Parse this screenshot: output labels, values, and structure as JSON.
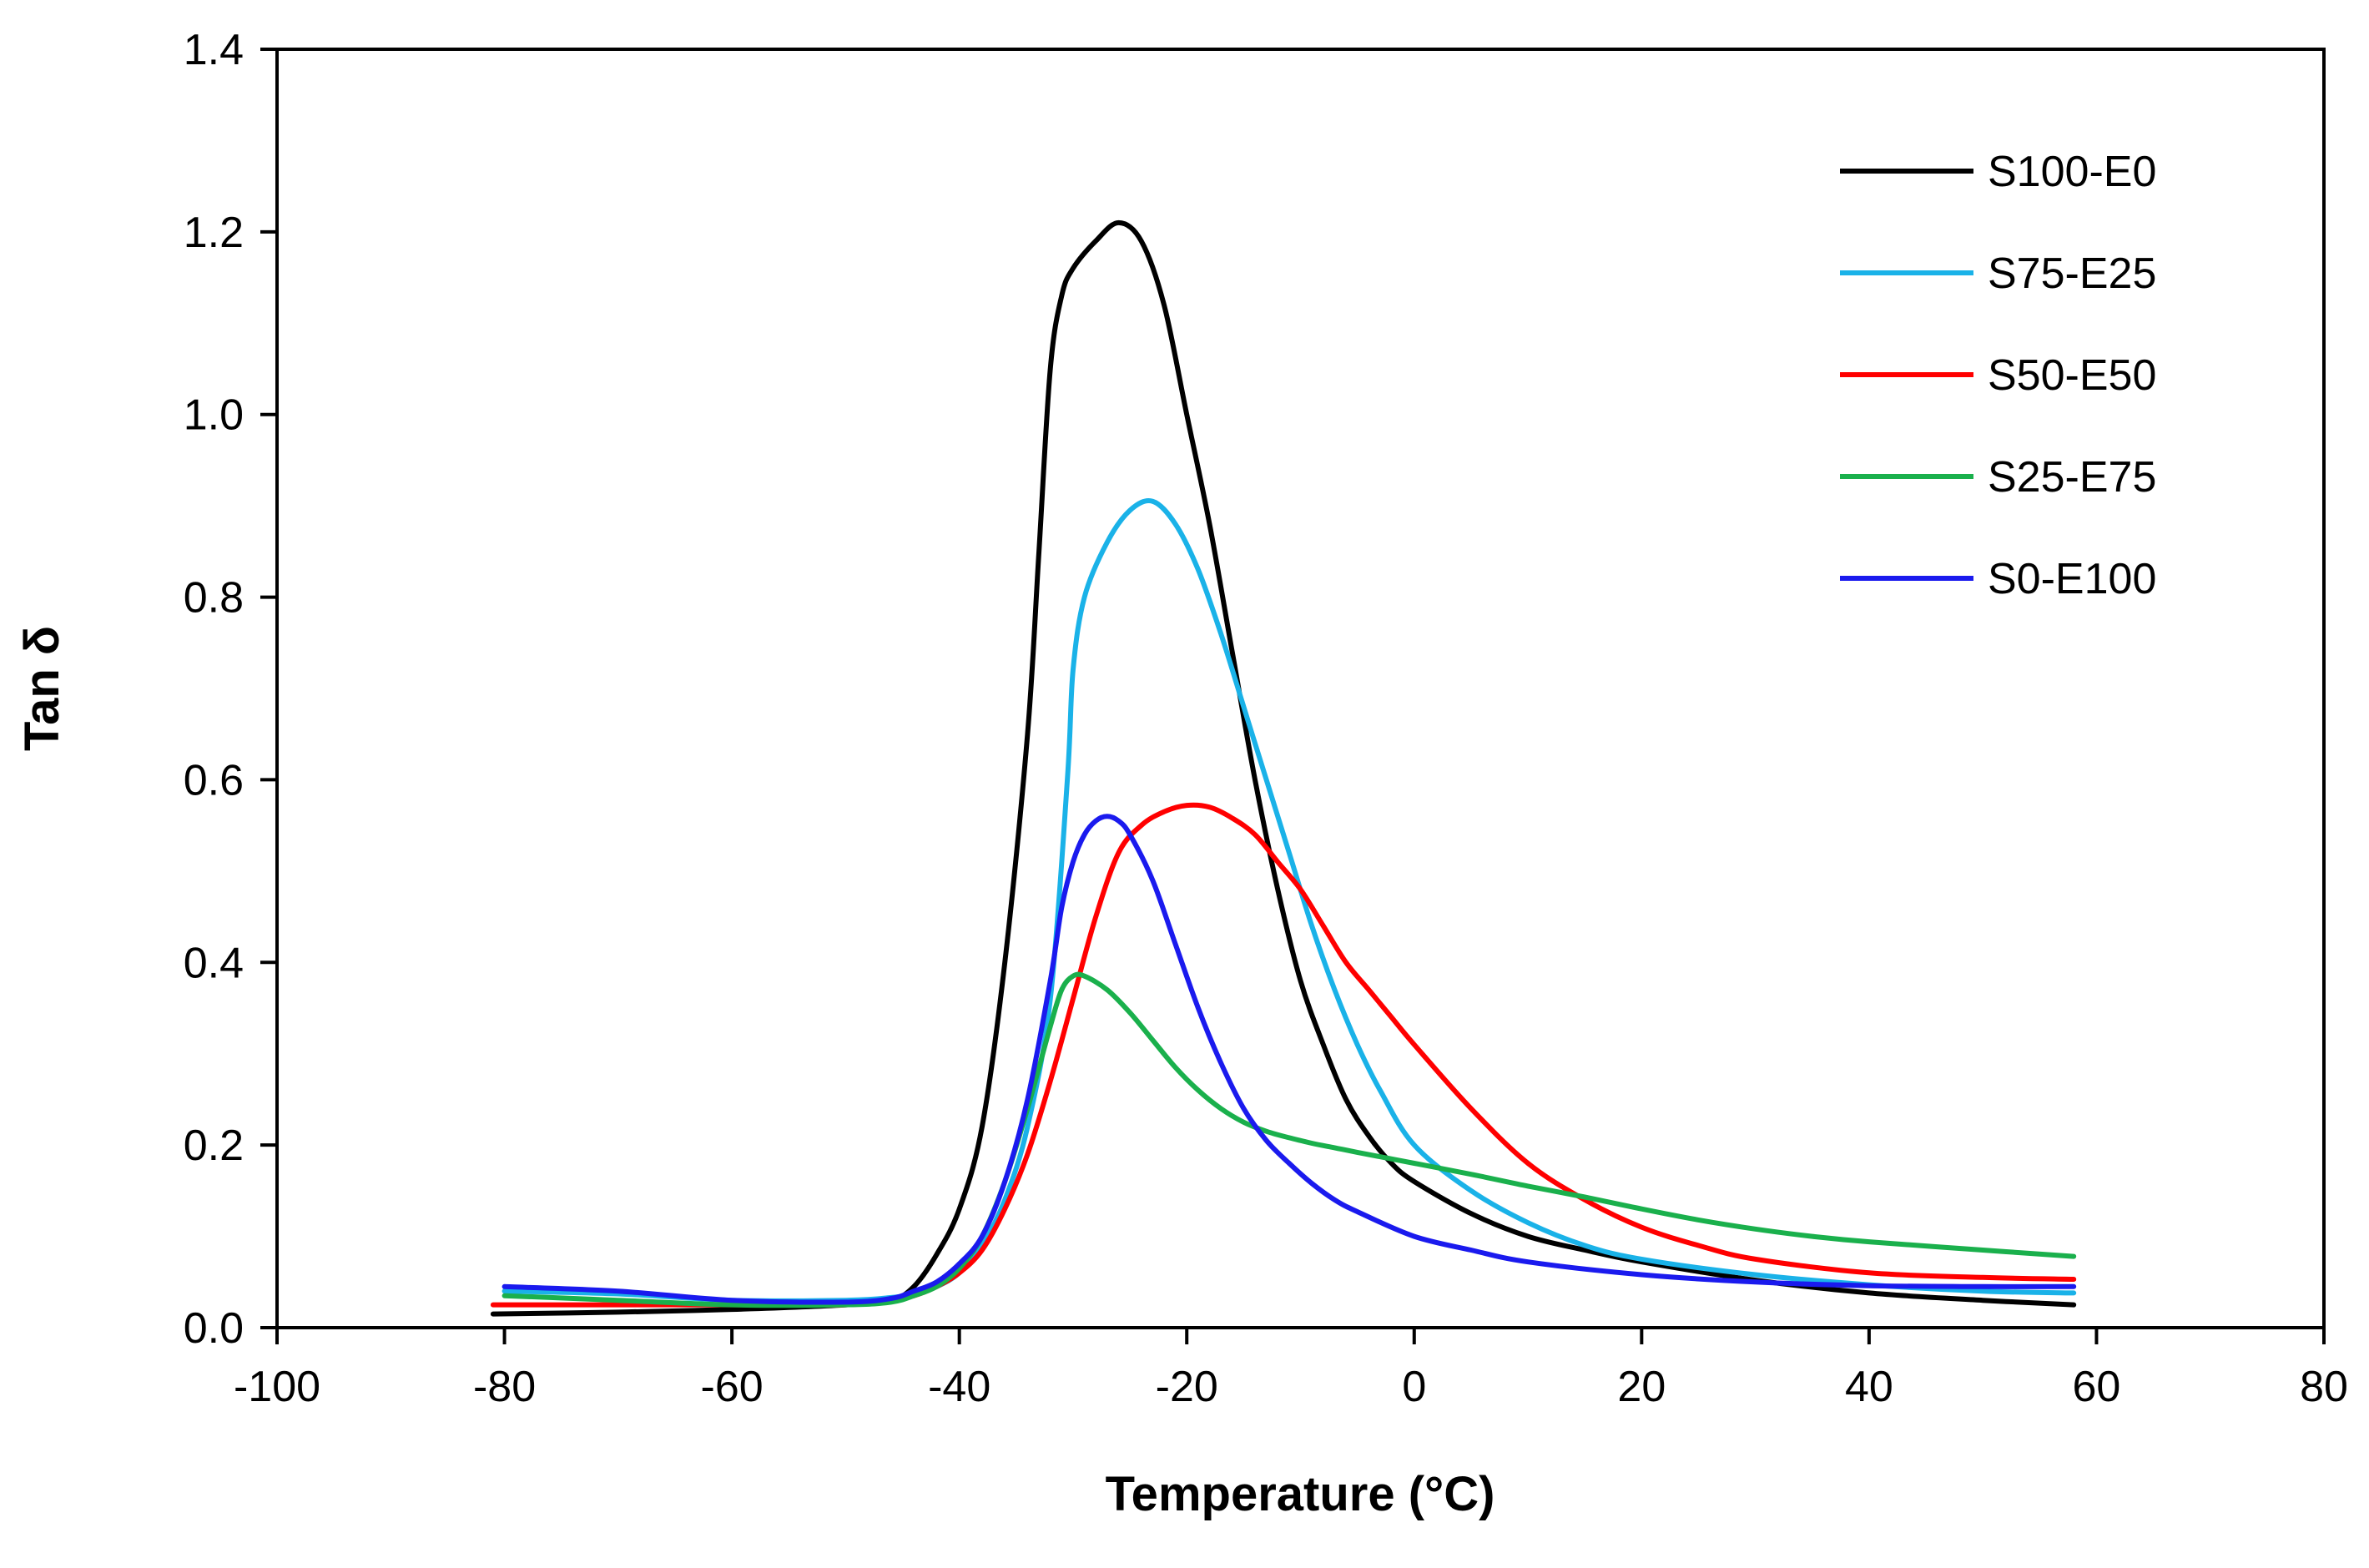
{
  "chart_data": {
    "type": "line",
    "title": "",
    "xlabel": "Temperature (°C)",
    "ylabel": "Tan δ",
    "xlim": [
      -100,
      80
    ],
    "ylim": [
      0,
      1.4
    ],
    "xticks": [
      -100,
      -80,
      -60,
      -40,
      -20,
      0,
      20,
      40,
      60,
      80
    ],
    "xtick_labels": [
      "-100",
      "-80",
      "-60",
      "-40",
      "-20",
      "0",
      "20",
      "40",
      "60",
      "80"
    ],
    "yticks": [
      0,
      0.2,
      0.4,
      0.6,
      0.8,
      1.0,
      1.2,
      1.4
    ],
    "ytick_labels": [
      "0.0",
      "0.2",
      "0.4",
      "0.6",
      "0.8",
      "1.0",
      "1.2",
      "1.4"
    ],
    "grid": false,
    "legend_position": "top-right",
    "series": [
      {
        "name": "S100-E0",
        "color": "#000000",
        "points": [
          [
            -81,
            0.015
          ],
          [
            -70,
            0.017
          ],
          [
            -60,
            0.02
          ],
          [
            -50,
            0.025
          ],
          [
            -46,
            0.03
          ],
          [
            -44,
            0.045
          ],
          [
            -42,
            0.08
          ],
          [
            -40,
            0.13
          ],
          [
            -38,
            0.22
          ],
          [
            -36,
            0.4
          ],
          [
            -34,
            0.65
          ],
          [
            -33,
            0.85
          ],
          [
            -32,
            1.05
          ],
          [
            -31,
            1.13
          ],
          [
            -30,
            1.16
          ],
          [
            -28,
            1.19
          ],
          [
            -26,
            1.21
          ],
          [
            -24,
            1.19
          ],
          [
            -22,
            1.12
          ],
          [
            -20,
            1.0
          ],
          [
            -18,
            0.88
          ],
          [
            -16,
            0.74
          ],
          [
            -14,
            0.6
          ],
          [
            -12,
            0.48
          ],
          [
            -10,
            0.38
          ],
          [
            -8,
            0.31
          ],
          [
            -6,
            0.25
          ],
          [
            -4,
            0.21
          ],
          [
            -2,
            0.18
          ],
          [
            0,
            0.16
          ],
          [
            5,
            0.125
          ],
          [
            10,
            0.1
          ],
          [
            15,
            0.085
          ],
          [
            20,
            0.072
          ],
          [
            30,
            0.052
          ],
          [
            40,
            0.038
          ],
          [
            50,
            0.03
          ],
          [
            58,
            0.025
          ]
        ]
      },
      {
        "name": "S75-E25",
        "color": "#1ab2e8",
        "points": [
          [
            -80,
            0.04
          ],
          [
            -70,
            0.037
          ],
          [
            -60,
            0.03
          ],
          [
            -50,
            0.03
          ],
          [
            -46,
            0.033
          ],
          [
            -44,
            0.037
          ],
          [
            -42,
            0.045
          ],
          [
            -40,
            0.06
          ],
          [
            -38,
            0.09
          ],
          [
            -36,
            0.14
          ],
          [
            -34,
            0.22
          ],
          [
            -32,
            0.36
          ],
          [
            -30.5,
            0.6
          ],
          [
            -30,
            0.72
          ],
          [
            -29,
            0.8
          ],
          [
            -27,
            0.86
          ],
          [
            -25,
            0.895
          ],
          [
            -23,
            0.905
          ],
          [
            -21,
            0.88
          ],
          [
            -19,
            0.83
          ],
          [
            -17,
            0.76
          ],
          [
            -15,
            0.68
          ],
          [
            -13,
            0.6
          ],
          [
            -11,
            0.52
          ],
          [
            -9,
            0.44
          ],
          [
            -7,
            0.37
          ],
          [
            -5,
            0.31
          ],
          [
            -3,
            0.26
          ],
          [
            0,
            0.2
          ],
          [
            5,
            0.15
          ],
          [
            10,
            0.115
          ],
          [
            15,
            0.09
          ],
          [
            20,
            0.075
          ],
          [
            30,
            0.058
          ],
          [
            40,
            0.047
          ],
          [
            50,
            0.04
          ],
          [
            58,
            0.038
          ]
        ]
      },
      {
        "name": "S50-E50",
        "color": "#ff0000",
        "points": [
          [
            -81,
            0.025
          ],
          [
            -70,
            0.025
          ],
          [
            -60,
            0.025
          ],
          [
            -50,
            0.025
          ],
          [
            -46,
            0.03
          ],
          [
            -44,
            0.035
          ],
          [
            -42,
            0.045
          ],
          [
            -40,
            0.06
          ],
          [
            -38,
            0.085
          ],
          [
            -36,
            0.13
          ],
          [
            -34,
            0.19
          ],
          [
            -32,
            0.27
          ],
          [
            -30,
            0.36
          ],
          [
            -28,
            0.45
          ],
          [
            -26,
            0.52
          ],
          [
            -24,
            0.55
          ],
          [
            -22,
            0.565
          ],
          [
            -20,
            0.572
          ],
          [
            -18,
            0.57
          ],
          [
            -16,
            0.558
          ],
          [
            -14,
            0.54
          ],
          [
            -12,
            0.51
          ],
          [
            -10,
            0.48
          ],
          [
            -8,
            0.44
          ],
          [
            -6,
            0.4
          ],
          [
            -4,
            0.37
          ],
          [
            -2,
            0.34
          ],
          [
            0,
            0.31
          ],
          [
            5,
            0.24
          ],
          [
            10,
            0.18
          ],
          [
            15,
            0.14
          ],
          [
            20,
            0.11
          ],
          [
            25,
            0.09
          ],
          [
            30,
            0.075
          ],
          [
            40,
            0.06
          ],
          [
            50,
            0.055
          ],
          [
            58,
            0.053
          ]
        ]
      },
      {
        "name": "S25-E75",
        "color": "#1ab04c",
        "points": [
          [
            -80,
            0.035
          ],
          [
            -70,
            0.03
          ],
          [
            -60,
            0.025
          ],
          [
            -50,
            0.025
          ],
          [
            -46,
            0.028
          ],
          [
            -44,
            0.035
          ],
          [
            -42,
            0.045
          ],
          [
            -40,
            0.065
          ],
          [
            -38,
            0.1
          ],
          [
            -36,
            0.16
          ],
          [
            -34,
            0.24
          ],
          [
            -32,
            0.33
          ],
          [
            -31,
            0.37
          ],
          [
            -30,
            0.385
          ],
          [
            -29,
            0.385
          ],
          [
            -27,
            0.37
          ],
          [
            -25,
            0.345
          ],
          [
            -23,
            0.315
          ],
          [
            -21,
            0.285
          ],
          [
            -19,
            0.26
          ],
          [
            -17,
            0.24
          ],
          [
            -15,
            0.225
          ],
          [
            -13,
            0.215
          ],
          [
            -11,
            0.208
          ],
          [
            -9,
            0.202
          ],
          [
            -7,
            0.197
          ],
          [
            -5,
            0.192
          ],
          [
            0,
            0.18
          ],
          [
            5,
            0.168
          ],
          [
            10,
            0.155
          ],
          [
            15,
            0.143
          ],
          [
            20,
            0.13
          ],
          [
            25,
            0.118
          ],
          [
            30,
            0.108
          ],
          [
            35,
            0.1
          ],
          [
            40,
            0.094
          ],
          [
            50,
            0.085
          ],
          [
            58,
            0.078
          ]
        ]
      },
      {
        "name": "S0-E100",
        "color": "#1a1aee",
        "points": [
          [
            -80,
            0.045
          ],
          [
            -70,
            0.04
          ],
          [
            -60,
            0.03
          ],
          [
            -50,
            0.028
          ],
          [
            -46,
            0.032
          ],
          [
            -44,
            0.04
          ],
          [
            -42,
            0.05
          ],
          [
            -40,
            0.07
          ],
          [
            -38,
            0.1
          ],
          [
            -36,
            0.16
          ],
          [
            -34,
            0.25
          ],
          [
            -32,
            0.38
          ],
          [
            -31,
            0.46
          ],
          [
            -30,
            0.51
          ],
          [
            -29,
            0.54
          ],
          [
            -28,
            0.555
          ],
          [
            -27,
            0.56
          ],
          [
            -26,
            0.555
          ],
          [
            -25,
            0.54
          ],
          [
            -23,
            0.49
          ],
          [
            -21,
            0.42
          ],
          [
            -19,
            0.35
          ],
          [
            -17,
            0.29
          ],
          [
            -15,
            0.24
          ],
          [
            -13,
            0.205
          ],
          [
            -11,
            0.18
          ],
          [
            -9,
            0.158
          ],
          [
            -7,
            0.14
          ],
          [
            -5,
            0.127
          ],
          [
            0,
            0.1
          ],
          [
            5,
            0.085
          ],
          [
            10,
            0.072
          ],
          [
            20,
            0.058
          ],
          [
            30,
            0.05
          ],
          [
            40,
            0.046
          ],
          [
            50,
            0.045
          ],
          [
            58,
            0.045
          ]
        ]
      }
    ]
  }
}
